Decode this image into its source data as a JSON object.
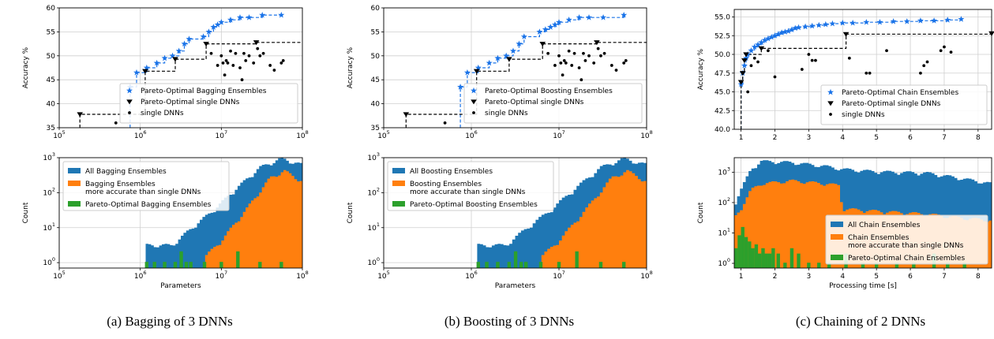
{
  "colors": {
    "blue": "#1f77b4",
    "orange": "#ff7f0e",
    "green": "#2ca02c",
    "star": "#1a73e8",
    "black": "#000000"
  },
  "captions": [
    "(a) Bagging of 3 DNNs",
    "(b) Boosting of 3 DNNs",
    "(c) Chaining of 2 DNNs"
  ],
  "chart_data": [
    {
      "type": "scatter",
      "title": "",
      "xlabel": "",
      "ylabel": "Accuracy %",
      "xscale": "log",
      "xlim": [
        100000,
        100000000
      ],
      "ylim": [
        35,
        60
      ],
      "xticks": [
        "10^5",
        "10^6",
        "10^7",
        "10^8"
      ],
      "yticks": [
        "35",
        "40",
        "45",
        "50",
        "55",
        "60"
      ],
      "grid": true,
      "legend_position": "bottom-right",
      "series": [
        {
          "name": "Pareto-Optimal Bagging Ensembles",
          "marker": "star",
          "x": [
            750000,
            900000,
            1200000,
            1600000,
            2000000,
            2500000,
            3000000,
            3500000,
            4000000,
            6000000,
            7000000,
            8000000,
            9000000,
            10000000,
            13000000,
            17000000,
            22000000,
            32000000,
            55000000
          ],
          "y": [
            43.5,
            46.5,
            47.5,
            48.5,
            49.5,
            50.0,
            51.0,
            52.5,
            53.5,
            54.0,
            55.0,
            56.0,
            56.5,
            57.0,
            57.5,
            58.0,
            58.0,
            58.5,
            58.5
          ]
        },
        {
          "name": "Pareto-Optimal single DNNs",
          "marker": "triangle",
          "x": [
            180000,
            1150000,
            2700000,
            6500000,
            27000000
          ],
          "y": [
            37.8,
            46.8,
            49.3,
            52.5,
            52.8
          ]
        },
        {
          "name": "single DNNs",
          "marker": "dot",
          "x": [
            500000,
            7500000,
            9000000,
            10000000,
            10500000,
            11000000,
            11500000,
            12000000,
            13000000,
            14000000,
            15000000,
            17000000,
            18000000,
            19000000,
            20000000,
            22000000,
            25000000,
            28000000,
            30000000,
            33000000,
            40000000,
            45000000,
            55000000,
            58000000
          ],
          "y": [
            36.0,
            50.5,
            48.0,
            50.0,
            48.5,
            46.0,
            49.0,
            48.5,
            51.0,
            48.0,
            50.5,
            47.5,
            45.0,
            50.5,
            49.0,
            50.0,
            48.5,
            51.5,
            50.0,
            50.5,
            48.0,
            47.0,
            48.5,
            49.0
          ]
        }
      ]
    },
    {
      "type": "bar",
      "title": "",
      "xlabel": "Parameters",
      "ylabel": "Count",
      "xscale": "log",
      "yscale": "log",
      "xlim": [
        100000,
        100000000
      ],
      "ylim": [
        0.7,
        1000
      ],
      "xticks": [
        "10^5",
        "10^6",
        "10^7",
        "10^8"
      ],
      "yticks": [
        "10^0",
        "10^1",
        "10^2",
        "10^3"
      ],
      "grid": true,
      "legend_position": "top-left",
      "series": [
        {
          "name": "All Bagging Ensembles",
          "profile": [
            [
              1200000,
              3
            ],
            [
              2500000,
              3
            ],
            [
              4000000,
              8
            ],
            [
              8000000,
              30
            ],
            [
              15000000,
              120
            ],
            [
              30000000,
              500
            ],
            [
              55000000,
              900
            ],
            [
              100000000,
              600
            ]
          ]
        },
        {
          "name": "Bagging Ensembles\nmore accurate than single DNNs",
          "profile": [
            [
              6500000,
              1.5
            ],
            [
              10000000,
              4
            ],
            [
              20000000,
              30
            ],
            [
              40000000,
              250
            ],
            [
              60000000,
              400
            ],
            [
              100000000,
              200
            ]
          ]
        },
        {
          "name": "Pareto-Optimal Bagging Ensembles",
          "x": [
            1200000,
            1500000,
            2000000,
            2700000,
            3200000,
            3700000,
            4200000,
            6200000,
            10000000,
            16000000,
            30000000,
            55000000
          ],
          "values": [
            1,
            1,
            1,
            1,
            2,
            1,
            1,
            1,
            1,
            2,
            1,
            1
          ]
        }
      ]
    },
    {
      "type": "scatter",
      "title": "",
      "xlabel": "",
      "ylabel": "Accuracy %",
      "xscale": "log",
      "xlim": [
        100000,
        100000000
      ],
      "ylim": [
        35,
        60
      ],
      "xticks": [
        "10^5",
        "10^6",
        "10^7",
        "10^8"
      ],
      "yticks": [
        "35",
        "40",
        "45",
        "50",
        "55",
        "60"
      ],
      "grid": true,
      "legend_position": "bottom-right",
      "series": [
        {
          "name": "Pareto-Optimal Boosting Ensembles",
          "marker": "star",
          "x": [
            750000,
            900000,
            1200000,
            1600000,
            2000000,
            2500000,
            3000000,
            3500000,
            4000000,
            6000000,
            7000000,
            8000000,
            9000000,
            10000000,
            13000000,
            17000000,
            22000000,
            32000000,
            55000000
          ],
          "y": [
            43.5,
            46.5,
            47.5,
            48.5,
            49.5,
            50.0,
            51.0,
            52.5,
            54.0,
            55.0,
            55.5,
            56.0,
            56.5,
            57.0,
            57.5,
            58.0,
            58.0,
            58.0,
            58.5
          ]
        },
        {
          "name": "Pareto-Optimal single DNNs",
          "marker": "triangle",
          "x": [
            180000,
            1150000,
            2700000,
            6500000,
            27000000
          ],
          "y": [
            37.8,
            46.8,
            49.3,
            52.5,
            52.8
          ]
        },
        {
          "name": "single DNNs",
          "marker": "dot",
          "x": [
            500000,
            7500000,
            9000000,
            10000000,
            10500000,
            11000000,
            11500000,
            12000000,
            13000000,
            14000000,
            15000000,
            17000000,
            18000000,
            19000000,
            20000000,
            22000000,
            25000000,
            28000000,
            30000000,
            33000000,
            40000000,
            45000000,
            55000000,
            58000000
          ],
          "y": [
            36.0,
            50.5,
            48.0,
            50.0,
            48.5,
            46.0,
            49.0,
            48.5,
            51.0,
            48.0,
            50.5,
            47.5,
            45.0,
            50.5,
            49.0,
            50.0,
            48.5,
            51.5,
            50.0,
            50.5,
            48.0,
            47.0,
            48.5,
            49.0
          ]
        }
      ]
    },
    {
      "type": "bar",
      "title": "",
      "xlabel": "Parameters",
      "ylabel": "Count",
      "xscale": "log",
      "yscale": "log",
      "xlim": [
        100000,
        100000000
      ],
      "ylim": [
        0.7,
        1000
      ],
      "xticks": [
        "10^5",
        "10^6",
        "10^7",
        "10^8"
      ],
      "yticks": [
        "10^0",
        "10^1",
        "10^2",
        "10^3"
      ],
      "grid": true,
      "legend_position": "top-left",
      "series": [
        {
          "name": "All Boosting Ensembles",
          "profile": [
            [
              1200000,
              3
            ],
            [
              2500000,
              3
            ],
            [
              4000000,
              8
            ],
            [
              8000000,
              30
            ],
            [
              15000000,
              120
            ],
            [
              30000000,
              500
            ],
            [
              55000000,
              900
            ],
            [
              100000000,
              600
            ]
          ]
        },
        {
          "name": "Boosting Ensembles\nmore accurate than single DNNs",
          "profile": [
            [
              6500000,
              1.5
            ],
            [
              10000000,
              4
            ],
            [
              20000000,
              30
            ],
            [
              40000000,
              250
            ],
            [
              60000000,
              400
            ],
            [
              100000000,
              200
            ]
          ]
        },
        {
          "name": "Pareto-Optimal Boosting Ensembles",
          "x": [
            1200000,
            1500000,
            2000000,
            2700000,
            3200000,
            3700000,
            4200000,
            6200000,
            10000000,
            16000000,
            30000000,
            55000000
          ],
          "values": [
            1,
            1,
            1,
            1,
            2,
            1,
            1,
            1,
            1,
            2,
            1,
            1
          ]
        }
      ]
    },
    {
      "type": "scatter",
      "title": "",
      "xlabel": "",
      "ylabel": "Accuracy %",
      "xscale": "linear",
      "xlim": [
        0.8,
        8.4
      ],
      "ylim": [
        40,
        56
      ],
      "xticks": [
        "1",
        "2",
        "3",
        "4",
        "5",
        "6",
        "7",
        "8"
      ],
      "yticks": [
        "40.0",
        "42.5",
        "45.0",
        "47.5",
        "50.0",
        "52.5",
        "55.0"
      ],
      "grid": true,
      "legend_position": "bottom-right",
      "series": [
        {
          "name": "Pareto-Optimal Chain Ensembles",
          "marker": "star",
          "x": [
            1.0,
            1.05,
            1.1,
            1.15,
            1.2,
            1.3,
            1.4,
            1.5,
            1.6,
            1.7,
            1.8,
            1.9,
            2.0,
            2.1,
            2.2,
            2.3,
            2.4,
            2.5,
            2.6,
            2.7,
            2.9,
            3.1,
            3.3,
            3.5,
            3.7,
            4.0,
            4.3,
            4.7,
            5.1,
            5.5,
            5.9,
            6.3,
            6.7,
            7.1,
            7.5
          ],
          "y": [
            46.0,
            47.5,
            48.5,
            49.5,
            50.0,
            50.5,
            51.0,
            51.3,
            51.6,
            51.9,
            52.1,
            52.3,
            52.5,
            52.7,
            52.9,
            53.0,
            53.1,
            53.3,
            53.5,
            53.6,
            53.7,
            53.8,
            53.9,
            54.0,
            54.1,
            54.2,
            54.2,
            54.3,
            54.3,
            54.4,
            54.4,
            54.5,
            54.5,
            54.6,
            54.7
          ]
        },
        {
          "name": "Pareto-Optimal single DNNs",
          "marker": "triangle",
          "x": [
            1.0,
            1.05,
            1.1,
            1.15,
            1.6,
            4.1,
            8.4
          ],
          "y": [
            46.3,
            47.5,
            49.2,
            50.0,
            50.8,
            52.7,
            52.8
          ]
        },
        {
          "name": "single DNNs",
          "marker": "dot",
          "x": [
            1.2,
            1.3,
            1.4,
            1.5,
            1.8,
            2.0,
            2.8,
            3.0,
            3.1,
            3.2,
            4.2,
            4.7,
            4.8,
            5.3,
            6.3,
            6.4,
            6.5,
            6.9,
            7.0,
            7.2
          ],
          "y": [
            45.0,
            48.5,
            49.5,
            49.0,
            50.5,
            47.0,
            48.0,
            50.0,
            49.2,
            49.2,
            49.5,
            47.5,
            47.5,
            50.5,
            47.5,
            48.5,
            49.0,
            50.5,
            51.0,
            50.3
          ]
        }
      ]
    },
    {
      "type": "bar",
      "title": "",
      "xlabel": "Processing time [s]",
      "ylabel": "Count",
      "xscale": "linear",
      "yscale": "log",
      "xlim": [
        0.8,
        8.4
      ],
      "ylim": [
        0.7,
        3000
      ],
      "xticks": [
        "1",
        "2",
        "3",
        "4",
        "5",
        "6",
        "7",
        "8"
      ],
      "yticks": [
        "10^0",
        "10^1",
        "10^2",
        "10^3"
      ],
      "grid": true,
      "legend_position": "bottom-right",
      "series": [
        {
          "name": "All Chain Ensembles",
          "profile": [
            [
              0.8,
              80
            ],
            [
              1.0,
              250
            ],
            [
              1.3,
              1200
            ],
            [
              1.6,
              2200
            ],
            [
              2.5,
              2000
            ],
            [
              3.5,
              1500
            ],
            [
              4.0,
              1200
            ],
            [
              5.0,
              1000
            ],
            [
              6.5,
              900
            ],
            [
              7.5,
              600
            ],
            [
              8.4,
              400
            ]
          ]
        },
        {
          "name": "Chain Ensembles\nmore accurate than single DNNs",
          "profile": [
            [
              0.8,
              30
            ],
            [
              1.0,
              60
            ],
            [
              1.3,
              250
            ],
            [
              1.6,
              400
            ],
            [
              2.5,
              500
            ],
            [
              3.5,
              400
            ],
            [
              3.9,
              350
            ],
            [
              4.0,
              60
            ],
            [
              5.0,
              50
            ],
            [
              6.5,
              40
            ],
            [
              7.5,
              30
            ],
            [
              8.4,
              25
            ]
          ]
        },
        {
          "name": "Pareto-Optimal Chain Ensembles",
          "x": [
            0.85,
            0.95,
            1.05,
            1.15,
            1.25,
            1.35,
            1.45,
            1.55,
            1.65,
            1.75,
            1.85,
            1.95,
            2.1,
            2.3,
            2.5,
            2.7,
            3.0,
            3.3,
            3.6,
            4.1,
            4.6,
            5.0,
            5.6,
            6.1,
            6.7,
            7.1,
            7.6
          ],
          "values": [
            3,
            8,
            15,
            7,
            5,
            3,
            4,
            2,
            3,
            2,
            2,
            3,
            2,
            1,
            3,
            2,
            1,
            1,
            1,
            2,
            1,
            1,
            1,
            1,
            2,
            1,
            1
          ]
        }
      ]
    }
  ]
}
